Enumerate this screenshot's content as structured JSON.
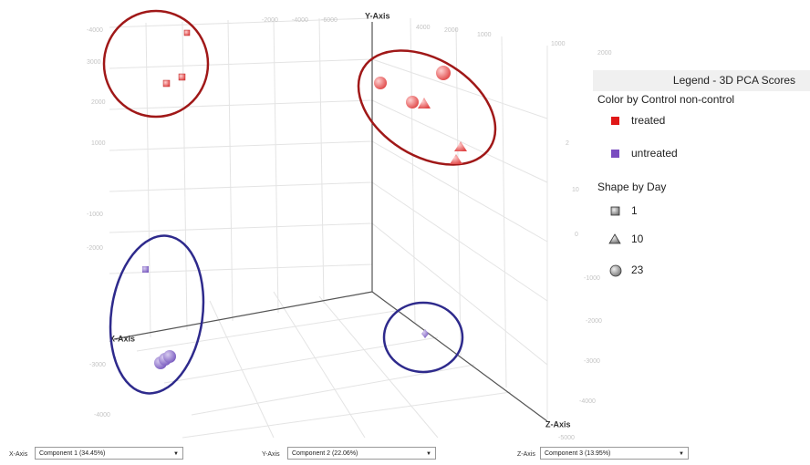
{
  "screen": {
    "axis_titles": {
      "y": "Y-Axis",
      "x": "X-Axis",
      "z": "Z-Axis"
    },
    "tick_labels": [
      "-4000",
      "-2000",
      "-4000",
      "-6000",
      "4000",
      "2000",
      "1000",
      "1000",
      "2000",
      "3000",
      "2000",
      "1000",
      "-1000",
      "-2000",
      "-3000",
      "-4000",
      "2",
      "10",
      "0",
      "-1000",
      "-2000",
      "-3000",
      "-4000",
      "-5000"
    ],
    "legend": {
      "title": "Legend - 3D PCA Scores",
      "color_title": "Color by Control non-control",
      "color_items": [
        "treated",
        "untreated"
      ],
      "shape_title": "Shape by Day",
      "shape_items": [
        "1",
        "10",
        "23"
      ]
    },
    "controls": [
      {
        "label": "X-Axis",
        "value": "Component 1 (34.45%)"
      },
      {
        "label": "Y-Axis",
        "value": "Component 2 (22.06%)"
      },
      {
        "label": "Z-Axis",
        "value": "Component 3 (13.95%)"
      }
    ]
  }
}
